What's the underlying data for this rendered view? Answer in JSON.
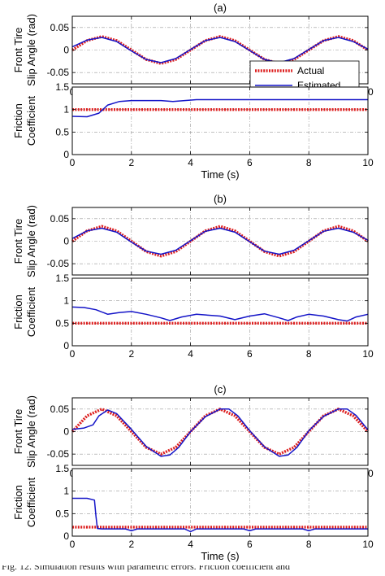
{
  "chart_data": [
    {
      "type": "line",
      "panel_label": "(a)",
      "ylabel_lines": [
        "Front Tire",
        "Slip Angle (rad)"
      ],
      "xlim": [
        0,
        10
      ],
      "ylim": [
        -0.075,
        0.075
      ],
      "yticks": [
        -0.05,
        0,
        0.05
      ],
      "ytick_labels": [
        "-0.05",
        "0",
        "0.05"
      ],
      "xticks": [
        0,
        2,
        4,
        6,
        8,
        10
      ],
      "xtick_labels": [
        "0",
        "2",
        "4",
        "6",
        "8",
        "10"
      ],
      "show_xtick_labels": true,
      "grid": "dash-dot",
      "legend": {
        "placement": "lower-right",
        "entries": [
          "Actual",
          "Estimated"
        ]
      },
      "series": [
        {
          "name": "Actual",
          "color": "#dd1f1f",
          "style": "dotted",
          "x": [
            0,
            0.5,
            1,
            1.5,
            2,
            2.5,
            3,
            3.5,
            4,
            4.5,
            5,
            5.5,
            6,
            6.5,
            7,
            7.5,
            8,
            8.5,
            9,
            9.5,
            10
          ],
          "y": [
            0,
            0.021,
            0.03,
            0.021,
            0,
            -0.021,
            -0.03,
            -0.021,
            0,
            0.021,
            0.03,
            0.021,
            0,
            -0.021,
            -0.03,
            -0.021,
            0,
            0.021,
            0.03,
            0.021,
            0
          ]
        },
        {
          "name": "Estimated",
          "color": "#1414c8",
          "style": "solid",
          "x": [
            0,
            0.5,
            1,
            1.5,
            2,
            2.5,
            3,
            3.5,
            4,
            4.5,
            5,
            5.5,
            6,
            6.5,
            7,
            7.5,
            8,
            8.5,
            9,
            9.5,
            10
          ],
          "y": [
            0.007,
            0.022,
            0.028,
            0.019,
            -0.002,
            -0.021,
            -0.028,
            -0.019,
            0.001,
            0.021,
            0.028,
            0.019,
            -0.001,
            -0.021,
            -0.028,
            -0.019,
            0.001,
            0.021,
            0.028,
            0.019,
            0.002
          ]
        }
      ]
    },
    {
      "type": "line",
      "ylabel_lines": [
        "Friction",
        "Coefficient"
      ],
      "xlabel": "Time (s)",
      "xlim": [
        0,
        10
      ],
      "ylim": [
        0,
        1.5
      ],
      "yticks": [
        0,
        0.5,
        1,
        1.5
      ],
      "ytick_labels": [
        "0",
        "0.5",
        "1",
        "1.5"
      ],
      "xticks": [
        0,
        2,
        4,
        6,
        8,
        10
      ],
      "xtick_labels": [
        "0",
        "2",
        "4",
        "6",
        "8",
        "10"
      ],
      "show_xtick_labels": true,
      "grid": "dash-dot",
      "series": [
        {
          "name": "Actual",
          "color": "#dd1f1f",
          "style": "dotted",
          "x": [
            0,
            10
          ],
          "y": [
            1,
            1
          ]
        },
        {
          "name": "Estimated",
          "color": "#1414c8",
          "style": "solid",
          "x": [
            0,
            0.5,
            0.9,
            1.2,
            1.6,
            2,
            3,
            3.4,
            3.8,
            4.2,
            5,
            6,
            7,
            8,
            9,
            10
          ],
          "y": [
            0.85,
            0.84,
            0.92,
            1.1,
            1.18,
            1.2,
            1.2,
            1.18,
            1.2,
            1.22,
            1.22,
            1.22,
            1.22,
            1.22,
            1.22,
            1.22
          ]
        }
      ]
    },
    {
      "type": "line",
      "panel_label": "(b)",
      "ylabel_lines": [
        "Front Tire",
        "Slip Angle (rad)"
      ],
      "xlim": [
        0,
        10
      ],
      "ylim": [
        -0.075,
        0.075
      ],
      "yticks": [
        -0.05,
        0,
        0.05
      ],
      "ytick_labels": [
        "-0.05",
        "0",
        "0.05"
      ],
      "xticks": [
        0,
        2,
        4,
        6,
        8,
        10
      ],
      "xtick_labels": [
        "0",
        "2",
        "4",
        "6",
        "8",
        "10"
      ],
      "show_xtick_labels": false,
      "grid": "dash-dot",
      "series": [
        {
          "name": "Actual",
          "color": "#dd1f1f",
          "style": "dotted",
          "x": [
            0,
            0.5,
            1,
            1.5,
            2,
            2.5,
            3,
            3.5,
            4,
            4.5,
            5,
            5.5,
            6,
            6.5,
            7,
            7.5,
            8,
            8.5,
            9,
            9.5,
            10
          ],
          "y": [
            0,
            0.023,
            0.033,
            0.023,
            0,
            -0.023,
            -0.033,
            -0.023,
            0,
            0.023,
            0.033,
            0.023,
            0,
            -0.023,
            -0.033,
            -0.023,
            0,
            0.023,
            0.033,
            0.023,
            0
          ]
        },
        {
          "name": "Estimated",
          "color": "#1414c8",
          "style": "solid",
          "x": [
            0,
            0.5,
            1,
            1.5,
            2,
            2.5,
            3,
            3.5,
            4,
            4.5,
            5,
            5.5,
            6,
            6.5,
            7,
            7.5,
            8,
            8.5,
            9,
            9.5,
            10
          ],
          "y": [
            0.006,
            0.023,
            0.029,
            0.02,
            -0.002,
            -0.022,
            -0.029,
            -0.02,
            0.001,
            0.022,
            0.029,
            0.02,
            -0.001,
            -0.022,
            -0.029,
            -0.02,
            0.001,
            0.022,
            0.029,
            0.02,
            0.002
          ]
        }
      ]
    },
    {
      "type": "line",
      "ylabel_lines": [
        "Friction",
        "Coefficient"
      ],
      "xlim": [
        0,
        10
      ],
      "ylim": [
        0,
        1.5
      ],
      "yticks": [
        0,
        0.5,
        1,
        1.5
      ],
      "ytick_labels": [
        "0",
        "0.5",
        "1",
        "1.5"
      ],
      "xticks": [
        0,
        2,
        4,
        6,
        8,
        10
      ],
      "xtick_labels": [
        "0",
        "2",
        "4",
        "6",
        "8",
        "10"
      ],
      "show_xtick_labels": true,
      "grid": "dash-dot",
      "series": [
        {
          "name": "Actual",
          "color": "#dd1f1f",
          "style": "dotted",
          "x": [
            0,
            10
          ],
          "y": [
            0.5,
            0.5
          ]
        },
        {
          "name": "Estimated",
          "color": "#1414c8",
          "style": "solid",
          "x": [
            0,
            0.4,
            0.8,
            1.2,
            1.6,
            2,
            2.5,
            3,
            3.3,
            3.7,
            4.2,
            5,
            5.5,
            6,
            6.5,
            7,
            7.3,
            7.6,
            8,
            8.5,
            9,
            9.3,
            9.6,
            10
          ],
          "y": [
            0.86,
            0.85,
            0.8,
            0.7,
            0.74,
            0.76,
            0.7,
            0.62,
            0.56,
            0.64,
            0.7,
            0.66,
            0.58,
            0.66,
            0.71,
            0.62,
            0.56,
            0.64,
            0.7,
            0.66,
            0.58,
            0.55,
            0.64,
            0.7
          ]
        }
      ]
    },
    {
      "type": "line",
      "panel_label": "(c)",
      "ylabel_lines": [
        "Front Tire",
        "Slip Angle (rad)"
      ],
      "xlim": [
        0,
        10
      ],
      "ylim": [
        -0.075,
        0.075
      ],
      "yticks": [
        -0.05,
        0,
        0.05
      ],
      "ytick_labels": [
        "-0.05",
        "0",
        "0.05"
      ],
      "xticks": [
        0,
        2,
        4,
        6,
        8,
        10
      ],
      "xtick_labels": [
        "0",
        "2",
        "4",
        "6",
        "8",
        "10"
      ],
      "show_xtick_labels": true,
      "grid": "dash-dot",
      "series": [
        {
          "name": "Actual",
          "color": "#dd1f1f",
          "style": "dotted",
          "x": [
            0,
            0.5,
            1,
            1.5,
            2,
            2.5,
            3,
            3.5,
            4,
            4.5,
            5,
            5.5,
            6,
            6.5,
            7,
            7.5,
            8,
            8.5,
            9,
            9.5,
            10
          ],
          "y": [
            0,
            0.035,
            0.05,
            0.035,
            0,
            -0.035,
            -0.05,
            -0.035,
            0,
            0.035,
            0.05,
            0.035,
            0,
            -0.035,
            -0.05,
            -0.035,
            0,
            0.035,
            0.05,
            0.035,
            0
          ]
        },
        {
          "name": "Estimated",
          "color": "#1414c8",
          "style": "solid",
          "x": [
            0,
            0.4,
            0.7,
            0.9,
            1.2,
            1.5,
            2,
            2.5,
            3,
            3.3,
            3.6,
            4,
            4.5,
            5,
            5.3,
            5.6,
            6,
            6.5,
            7,
            7.3,
            7.6,
            8,
            8.5,
            9,
            9.3,
            9.6,
            10
          ],
          "y": [
            0.005,
            0.008,
            0.015,
            0.035,
            0.048,
            0.04,
            0.005,
            -0.033,
            -0.055,
            -0.052,
            -0.035,
            0,
            0.033,
            0.05,
            0.05,
            0.035,
            0.002,
            -0.034,
            -0.055,
            -0.052,
            -0.035,
            0.002,
            0.034,
            0.05,
            0.05,
            0.036,
            0.004
          ]
        }
      ]
    },
    {
      "type": "line",
      "ylabel_lines": [
        "Friction",
        "Coefficient"
      ],
      "xlabel": "Time (s)",
      "xlim": [
        0,
        10
      ],
      "ylim": [
        0,
        1.5
      ],
      "yticks": [
        0,
        0.5,
        1,
        1.5
      ],
      "ytick_labels": [
        "0",
        "0.5",
        "1",
        "1.5"
      ],
      "xticks": [
        0,
        2,
        4,
        6,
        8,
        10
      ],
      "xtick_labels": [
        "0",
        "2",
        "4",
        "6",
        "8",
        "10"
      ],
      "show_xtick_labels": true,
      "grid": "dash-dot",
      "series": [
        {
          "name": "Actual",
          "color": "#dd1f1f",
          "style": "dotted",
          "x": [
            0,
            10
          ],
          "y": [
            0.2,
            0.2
          ]
        },
        {
          "name": "Estimated",
          "color": "#1414c8",
          "style": "solid",
          "x": [
            0,
            0.5,
            0.75,
            0.8,
            0.85,
            1,
            1.8,
            2,
            2.2,
            3.8,
            4,
            4.2,
            5.8,
            6,
            6.2,
            7.8,
            8,
            8.2,
            10
          ],
          "y": [
            0.84,
            0.84,
            0.8,
            0.45,
            0.17,
            0.16,
            0.16,
            0.12,
            0.16,
            0.16,
            0.1,
            0.16,
            0.16,
            0.12,
            0.16,
            0.16,
            0.12,
            0.16,
            0.16
          ]
        }
      ]
    }
  ],
  "caption": "Fig. 12.  Simulation results with parametric errors. Friction coefficient and"
}
